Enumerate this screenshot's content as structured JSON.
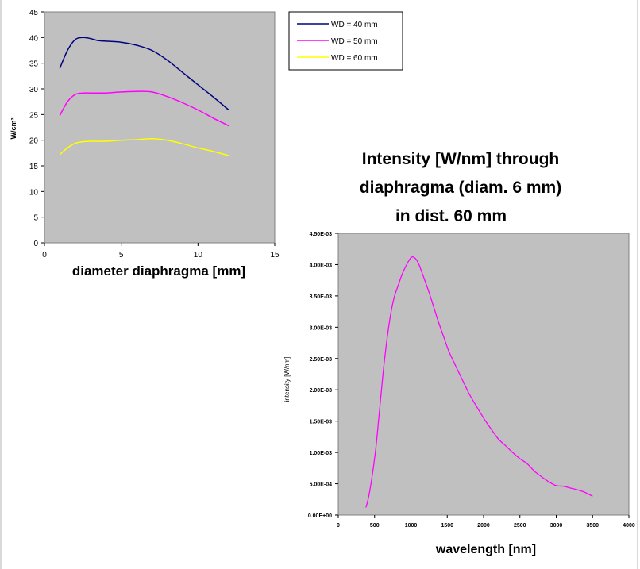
{
  "chart_data": [
    {
      "type": "line",
      "title": "",
      "xlabel": "diameter diaphragma [mm]",
      "ylabel": "W/cm²",
      "xlim": [
        0,
        15
      ],
      "ylim": [
        0,
        45
      ],
      "xticks": [
        "0",
        "5",
        "10",
        "15"
      ],
      "yticks": [
        "0",
        "5",
        "10",
        "15",
        "20",
        "25",
        "30",
        "35",
        "40",
        "45"
      ],
      "grid": false,
      "legend_position": "outside-right",
      "series": [
        {
          "name": "WD = 40 mm",
          "color": "#000080",
          "x": [
            1,
            1.5,
            2,
            2.5,
            3,
            3.5,
            4,
            5,
            6,
            7,
            8,
            9,
            10,
            11,
            12
          ],
          "y": [
            34,
            37.5,
            39.6,
            40,
            39.8,
            39.4,
            39.3,
            39.1,
            38.5,
            37.5,
            35.6,
            33.2,
            30.8,
            28.4,
            25.9
          ]
        },
        {
          "name": "WD = 50 mm",
          "color": "#ff00ff",
          "x": [
            1,
            1.5,
            2,
            2.5,
            3,
            4,
            5,
            6,
            7,
            8,
            9,
            10,
            11,
            12
          ],
          "y": [
            24.8,
            27.5,
            28.9,
            29.2,
            29.2,
            29.2,
            29.4,
            29.5,
            29.4,
            28.5,
            27.3,
            25.9,
            24.3,
            22.8
          ]
        },
        {
          "name": "WD = 60 mm",
          "color": "#ffff00",
          "x": [
            1,
            1.5,
            2,
            2.5,
            3,
            4,
            5,
            6,
            7,
            8,
            9,
            10,
            11,
            12
          ],
          "y": [
            17.2,
            18.5,
            19.4,
            19.7,
            19.8,
            19.8,
            20,
            20.1,
            20.3,
            20,
            19.3,
            18.5,
            17.8,
            17
          ]
        }
      ]
    },
    {
      "type": "line",
      "title": "Intensity [W/nm] through diaphragma (diam. 6 mm) in dist. 60 mm",
      "title_lines": [
        "Intensity [W/nm] through",
        "diaphragma (diam. 6 mm)",
        "in dist. 60 mm"
      ],
      "xlabel": "wavelength [nm]",
      "ylabel": "intensity [W/nm]",
      "xlim": [
        0,
        4000
      ],
      "ylim": [
        0,
        0.0045
      ],
      "xticks": [
        "0",
        "500",
        "1000",
        "1500",
        "2000",
        "2500",
        "3000",
        "3500",
        "4000"
      ],
      "yticks": [
        "0.00E+00",
        "5.00E-04",
        "1.00E-03",
        "1.50E-03",
        "2.00E-03",
        "2.50E-03",
        "3.00E-03",
        "3.50E-03",
        "4.00E-03",
        "4.50E-03"
      ],
      "grid": false,
      "series": [
        {
          "color": "#ff00ff",
          "x": [
            380,
            420,
            470,
            520,
            570,
            620,
            670,
            720,
            770,
            820,
            870,
            920,
            970,
            1010,
            1050,
            1100,
            1150,
            1200,
            1260,
            1320,
            1380,
            1450,
            1520,
            1600,
            1700,
            1800,
            1900,
            2000,
            2100,
            2200,
            2300,
            2400,
            2500,
            2600,
            2700,
            2800,
            2900,
            3000,
            3100,
            3200,
            3300,
            3400,
            3500
          ],
          "y": [
            0.00012,
            0.0003,
            0.00065,
            0.0011,
            0.0017,
            0.0023,
            0.0028,
            0.0032,
            0.00348,
            0.00365,
            0.00382,
            0.00395,
            0.00406,
            0.00412,
            0.00411,
            0.00403,
            0.00388,
            0.00372,
            0.00352,
            0.0033,
            0.00308,
            0.00285,
            0.00262,
            0.00242,
            0.00218,
            0.00194,
            0.00174,
            0.00155,
            0.00138,
            0.00122,
            0.00111,
            0.001,
            0.0009,
            0.00082,
            0.0007,
            0.00061,
            0.00053,
            0.00047,
            0.00046,
            0.00043,
            0.0004,
            0.00036,
            0.0003
          ]
        }
      ]
    }
  ]
}
